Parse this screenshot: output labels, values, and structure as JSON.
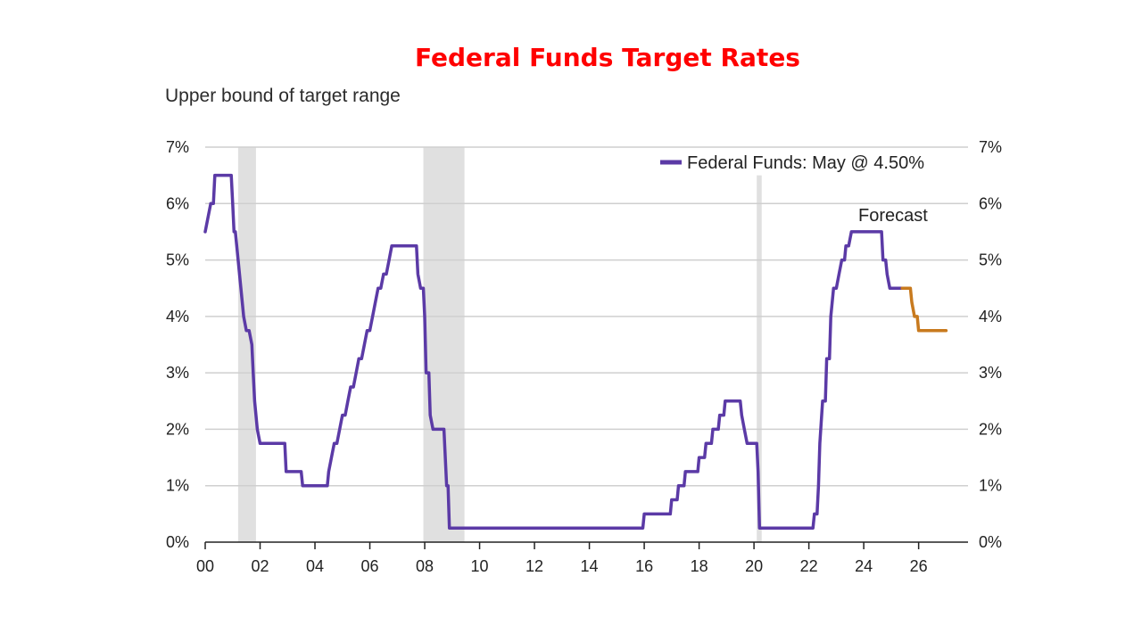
{
  "chart_data": {
    "type": "line",
    "title": "Federal Funds Target Rates",
    "subtitle": "Upper bound of target range",
    "xlabel": "",
    "ylabel": "",
    "xlim": [
      2000,
      2027.8
    ],
    "ylim": [
      0,
      7
    ],
    "x_ticks": [
      {
        "value": 2000,
        "label": "00"
      },
      {
        "value": 2002,
        "label": "02"
      },
      {
        "value": 2004,
        "label": "04"
      },
      {
        "value": 2006,
        "label": "06"
      },
      {
        "value": 2008,
        "label": "08"
      },
      {
        "value": 2010,
        "label": "10"
      },
      {
        "value": 2012,
        "label": "12"
      },
      {
        "value": 2014,
        "label": "14"
      },
      {
        "value": 2016,
        "label": "16"
      },
      {
        "value": 2018,
        "label": "18"
      },
      {
        "value": 2020,
        "label": "20"
      },
      {
        "value": 2022,
        "label": "22"
      },
      {
        "value": 2024,
        "label": "24"
      },
      {
        "value": 2026,
        "label": "26"
      }
    ],
    "y_ticks_left": [
      {
        "value": 0,
        "label": "0%"
      },
      {
        "value": 1,
        "label": "1%"
      },
      {
        "value": 2,
        "label": "2%"
      },
      {
        "value": 3,
        "label": "3%"
      },
      {
        "value": 4,
        "label": "4%"
      },
      {
        "value": 5,
        "label": "5%"
      },
      {
        "value": 6,
        "label": "6%"
      },
      {
        "value": 7,
        "label": "7%"
      }
    ],
    "y_ticks_right": [
      {
        "value": 0,
        "label": "0%"
      },
      {
        "value": 1,
        "label": "1%"
      },
      {
        "value": 2,
        "label": "2%"
      },
      {
        "value": 3,
        "label": "3%"
      },
      {
        "value": 4,
        "label": "4%"
      },
      {
        "value": 5,
        "label": "5%"
      },
      {
        "value": 6,
        "label": "6%"
      },
      {
        "value": 7,
        "label": "7%"
      }
    ],
    "recession_bands": [
      {
        "start": 2001.2,
        "end": 2001.85
      },
      {
        "start": 2007.95,
        "end": 2009.45
      },
      {
        "start": 2020.1,
        "end": 2020.28,
        "top": 6.5
      }
    ],
    "legend": {
      "label": "Federal Funds: May @ 4.50%",
      "placement": "top-right"
    },
    "annotation": {
      "text": "Forecast",
      "x": 2025.5,
      "y": 5.75
    },
    "series": [
      {
        "name": "Federal Funds",
        "color": "#5b3aa6",
        "points": [
          [
            2000.0,
            5.5
          ],
          [
            2000.1,
            5.75
          ],
          [
            2000.2,
            6.0
          ],
          [
            2000.3,
            6.0
          ],
          [
            2000.35,
            6.5
          ],
          [
            2000.95,
            6.5
          ],
          [
            2001.0,
            6.0
          ],
          [
            2001.05,
            5.5
          ],
          [
            2001.1,
            5.5
          ],
          [
            2001.2,
            5.0
          ],
          [
            2001.3,
            4.5
          ],
          [
            2001.4,
            4.0
          ],
          [
            2001.5,
            3.75
          ],
          [
            2001.6,
            3.75
          ],
          [
            2001.7,
            3.5
          ],
          [
            2001.75,
            3.0
          ],
          [
            2001.8,
            2.5
          ],
          [
            2001.9,
            2.0
          ],
          [
            2002.0,
            1.75
          ],
          [
            2002.9,
            1.75
          ],
          [
            2002.95,
            1.25
          ],
          [
            2003.5,
            1.25
          ],
          [
            2003.55,
            1.0
          ],
          [
            2004.45,
            1.0
          ],
          [
            2004.5,
            1.25
          ],
          [
            2004.6,
            1.5
          ],
          [
            2004.7,
            1.75
          ],
          [
            2004.8,
            1.75
          ],
          [
            2004.9,
            2.0
          ],
          [
            2005.0,
            2.25
          ],
          [
            2005.1,
            2.25
          ],
          [
            2005.2,
            2.5
          ],
          [
            2005.3,
            2.75
          ],
          [
            2005.4,
            2.75
          ],
          [
            2005.5,
            3.0
          ],
          [
            2005.6,
            3.25
          ],
          [
            2005.7,
            3.25
          ],
          [
            2005.8,
            3.5
          ],
          [
            2005.9,
            3.75
          ],
          [
            2006.0,
            3.75
          ],
          [
            2006.1,
            4.0
          ],
          [
            2006.2,
            4.25
          ],
          [
            2006.3,
            4.5
          ],
          [
            2006.4,
            4.5
          ],
          [
            2006.5,
            4.75
          ],
          [
            2006.6,
            4.75
          ],
          [
            2006.7,
            5.0
          ],
          [
            2006.8,
            5.25
          ],
          [
            2007.7,
            5.25
          ],
          [
            2007.75,
            4.75
          ],
          [
            2007.85,
            4.5
          ],
          [
            2007.95,
            4.5
          ],
          [
            2008.0,
            4.0
          ],
          [
            2008.05,
            3.0
          ],
          [
            2008.15,
            3.0
          ],
          [
            2008.2,
            2.25
          ],
          [
            2008.3,
            2.0
          ],
          [
            2008.7,
            2.0
          ],
          [
            2008.75,
            1.5
          ],
          [
            2008.8,
            1.0
          ],
          [
            2008.85,
            1.0
          ],
          [
            2008.9,
            0.25
          ],
          [
            2015.95,
            0.25
          ],
          [
            2016.0,
            0.5
          ],
          [
            2016.95,
            0.5
          ],
          [
            2017.0,
            0.75
          ],
          [
            2017.2,
            0.75
          ],
          [
            2017.25,
            1.0
          ],
          [
            2017.45,
            1.0
          ],
          [
            2017.5,
            1.25
          ],
          [
            2017.95,
            1.25
          ],
          [
            2018.0,
            1.5
          ],
          [
            2018.2,
            1.5
          ],
          [
            2018.25,
            1.75
          ],
          [
            2018.45,
            1.75
          ],
          [
            2018.5,
            2.0
          ],
          [
            2018.7,
            2.0
          ],
          [
            2018.75,
            2.25
          ],
          [
            2018.9,
            2.25
          ],
          [
            2018.95,
            2.5
          ],
          [
            2019.5,
            2.5
          ],
          [
            2019.55,
            2.25
          ],
          [
            2019.65,
            2.0
          ],
          [
            2019.75,
            1.75
          ],
          [
            2020.1,
            1.75
          ],
          [
            2020.15,
            1.25
          ],
          [
            2020.2,
            0.25
          ],
          [
            2022.15,
            0.25
          ],
          [
            2022.2,
            0.5
          ],
          [
            2022.3,
            0.5
          ],
          [
            2022.35,
            1.0
          ],
          [
            2022.4,
            1.75
          ],
          [
            2022.5,
            2.5
          ],
          [
            2022.6,
            2.5
          ],
          [
            2022.65,
            3.25
          ],
          [
            2022.75,
            3.25
          ],
          [
            2022.8,
            4.0
          ],
          [
            2022.9,
            4.5
          ],
          [
            2023.0,
            4.5
          ],
          [
            2023.1,
            4.75
          ],
          [
            2023.2,
            5.0
          ],
          [
            2023.3,
            5.0
          ],
          [
            2023.35,
            5.25
          ],
          [
            2023.45,
            5.25
          ],
          [
            2023.55,
            5.5
          ],
          [
            2024.65,
            5.5
          ],
          [
            2024.7,
            5.0
          ],
          [
            2024.8,
            5.0
          ],
          [
            2024.85,
            4.75
          ],
          [
            2024.95,
            4.5
          ],
          [
            2025.4,
            4.5
          ]
        ]
      },
      {
        "name": "Forecast",
        "color": "#c87a1e",
        "points": [
          [
            2025.4,
            4.5
          ],
          [
            2025.7,
            4.5
          ],
          [
            2025.75,
            4.25
          ],
          [
            2025.85,
            4.0
          ],
          [
            2025.95,
            4.0
          ],
          [
            2026.0,
            3.75
          ],
          [
            2027.0,
            3.75
          ]
        ]
      }
    ]
  }
}
